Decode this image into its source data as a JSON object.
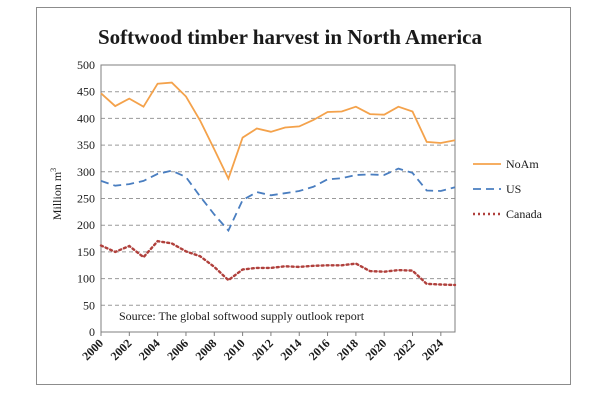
{
  "chart_data": {
    "type": "line",
    "title": "Softwood timber harvest in North America",
    "ylabel": "Million m",
    "ylabel_sup": "3",
    "annotation": "Source: The global softwood supply outlook report",
    "x": [
      2000,
      2001,
      2002,
      2003,
      2004,
      2005,
      2006,
      2007,
      2008,
      2009,
      2010,
      2011,
      2012,
      2013,
      2014,
      2015,
      2016,
      2017,
      2018,
      2019,
      2020,
      2021,
      2022,
      2023,
      2024,
      2025
    ],
    "xticks": [
      "2000",
      "2002",
      "2004",
      "2006",
      "2008",
      "2010",
      "2012",
      "2014",
      "2016",
      "2018",
      "2020",
      "2022",
      "2024"
    ],
    "ylim": [
      0,
      500
    ],
    "yticks": [
      "0",
      "50",
      "100",
      "150",
      "200",
      "250",
      "300",
      "350",
      "400",
      "450",
      "500"
    ],
    "grid": "horizontal-dashed",
    "legend_position": "right",
    "series": [
      {
        "name": "NoAm",
        "color": "#f4a24b",
        "dash": "solid",
        "values": [
          447,
          423,
          437,
          422,
          465,
          467,
          441,
          396,
          342,
          287,
          364,
          381,
          375,
          383,
          385,
          397,
          412,
          413,
          422,
          408,
          407,
          422,
          413,
          356,
          354,
          359
        ]
      },
      {
        "name": "US",
        "color": "#4a7ec0",
        "dash": "dashed",
        "values": [
          283,
          274,
          277,
          283,
          296,
          302,
          290,
          254,
          220,
          190,
          247,
          262,
          256,
          260,
          264,
          272,
          286,
          288,
          294,
          295,
          294,
          306,
          298,
          265,
          264,
          271
        ]
      },
      {
        "name": "Canada",
        "color": "#b0403c",
        "dash": "dotted",
        "values": [
          162,
          150,
          161,
          140,
          170,
          166,
          151,
          142,
          122,
          97,
          117,
          120,
          120,
          123,
          122,
          124,
          125,
          125,
          128,
          114,
          113,
          116,
          115,
          90,
          89,
          88
        ]
      }
    ]
  }
}
